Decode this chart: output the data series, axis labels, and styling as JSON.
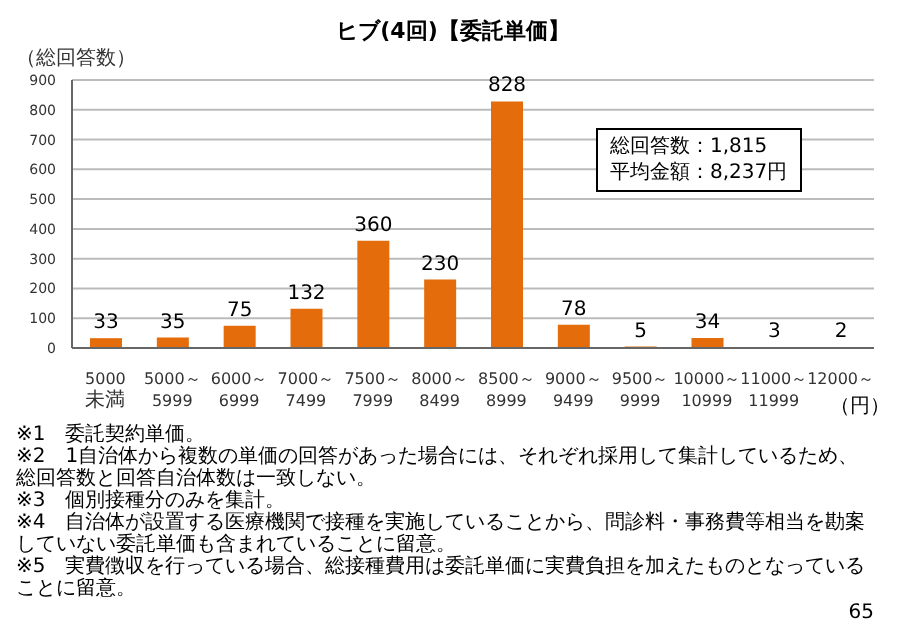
{
  "chart_data": {
    "type": "bar",
    "title": "ヒブ(4回)【委託単価】",
    "ylabel": "（総回答数）",
    "xlabel": "（円）",
    "categories": [
      "5000未満",
      "5000～5999",
      "6000～6999",
      "7000～7499",
      "7500～7999",
      "8000～8499",
      "8500～8999",
      "9000～9499",
      "9500～9999",
      "10000～10999",
      "11000～11999",
      "12000～"
    ],
    "values": [
      33,
      35,
      75,
      132,
      360,
      230,
      828,
      78,
      5,
      34,
      3,
      2
    ],
    "color": "#e46c0a",
    "ylim": [
      0,
      900
    ],
    "yticks": [
      0,
      100,
      200,
      300,
      400,
      500,
      600,
      700,
      800,
      900
    ],
    "grid": "y",
    "data_labels": true,
    "annotations": [
      "総回答数：1,815",
      "平均金額：8,237円",
      "※1　委託契約単価。",
      "※2　1自治体から複数の単価の回答があった場合には、それぞれ採用して集計しているため、総回答数と回答自治体数は一致しない。",
      "※3　個別接種分のみを集計。",
      "※4　自治体が設置する医療機関で接種を実施していることから、問診料・事務費等相当を勘案していない委託単価も含まれていることに留意。",
      "※5　実費徴収を行っている場合、総接種費用は委託単価に実費負担を加えたものとなっていることに留意。",
      "65"
    ]
  }
}
